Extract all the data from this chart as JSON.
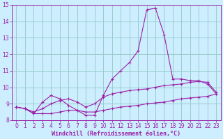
{
  "xlabel": "Windchill (Refroidissement éolien,°C)",
  "x": [
    0,
    1,
    2,
    3,
    4,
    5,
    6,
    7,
    8,
    9,
    10,
    11,
    12,
    13,
    14,
    15,
    16,
    17,
    18,
    19,
    20,
    21,
    22,
    23
  ],
  "line1": [
    8.8,
    8.7,
    8.4,
    9.1,
    9.5,
    9.3,
    8.9,
    8.6,
    8.3,
    8.3,
    9.5,
    10.5,
    11.0,
    11.5,
    12.2,
    14.7,
    14.8,
    13.2,
    10.5,
    10.5,
    10.4,
    10.4,
    10.2,
    9.6
  ],
  "line2": [
    8.8,
    8.7,
    8.5,
    8.7,
    9.0,
    9.2,
    9.3,
    9.1,
    8.8,
    9.0,
    9.4,
    9.6,
    9.7,
    9.8,
    9.85,
    9.9,
    10.0,
    10.1,
    10.15,
    10.2,
    10.3,
    10.35,
    10.3,
    9.7
  ],
  "line3": [
    8.8,
    8.7,
    8.4,
    8.4,
    8.4,
    8.5,
    8.6,
    8.6,
    8.5,
    8.5,
    8.6,
    8.7,
    8.8,
    8.85,
    8.9,
    9.0,
    9.05,
    9.1,
    9.2,
    9.3,
    9.35,
    9.4,
    9.45,
    9.6
  ],
  "line_color": "#9b1fa8",
  "bg_color": "#cceeff",
  "grid_color": "#99cccc",
  "ylim": [
    8,
    15
  ],
  "xlim": [
    0,
    23
  ],
  "yticks": [
    8,
    9,
    10,
    11,
    12,
    13,
    14,
    15
  ],
  "xticks": [
    0,
    1,
    2,
    3,
    4,
    5,
    6,
    7,
    8,
    9,
    10,
    11,
    12,
    13,
    14,
    15,
    16,
    17,
    18,
    19,
    20,
    21,
    22,
    23
  ],
  "tick_fontsize": 5.5,
  "xlabel_fontsize": 6.0
}
